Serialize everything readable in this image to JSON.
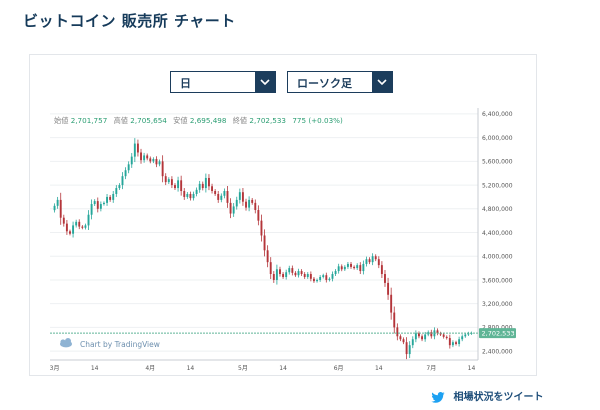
{
  "page_title": "ビットコイン 販売所 チャート",
  "controls": {
    "period_value": "日",
    "chart_type_value": "ローソク足"
  },
  "ohlc_header": {
    "open_label": "始値",
    "open_value": "2,701,757",
    "high_label": "高値",
    "high_value": "2,705,654",
    "low_label": "安値",
    "low_value": "2,695,498",
    "close_label": "終値",
    "close_value": "2,702,533",
    "change_value": "775 (+0.03%)"
  },
  "attribution": "Chart by TradingView",
  "tweet_link": "相場状況をツイート",
  "colors": {
    "up": "#26a69a",
    "down": "#b4353a",
    "navy": "#1c3d5c",
    "price_line": "#5fb596"
  },
  "chart_data": {
    "type": "candlestick",
    "yticks": [
      "6,400,000",
      "6,000,000",
      "5,600,000",
      "5,200,000",
      "4,800,000",
      "4,400,000",
      "4,000,000",
      "3,600,000",
      "3,200,000",
      "2,800,000",
      "2,400,000"
    ],
    "ytick_values": [
      6400000,
      6000000,
      5600000,
      5200000,
      4800000,
      4400000,
      4000000,
      3600000,
      3200000,
      2800000,
      2400000
    ],
    "ylim": [
      2250000,
      6500000
    ],
    "xtick_labels": [
      {
        "label": "3月",
        "index": 0
      },
      {
        "label": "14",
        "index": 13
      },
      {
        "label": "4月",
        "index": 31
      },
      {
        "label": "14",
        "index": 44
      },
      {
        "label": "5月",
        "index": 61
      },
      {
        "label": "14",
        "index": 74
      },
      {
        "label": "6月",
        "index": 92
      },
      {
        "label": "14",
        "index": 105
      },
      {
        "label": "7月",
        "index": 122
      },
      {
        "label": "14",
        "index": 135
      }
    ],
    "last_price": 2702533,
    "last_price_label": "2,702,533",
    "close_series": [
      4850000,
      4950000,
      4650000,
      4550000,
      4420000,
      4380000,
      4520000,
      4580000,
      4500000,
      4480000,
      4520000,
      4700000,
      4880000,
      4930000,
      4800000,
      4880000,
      4900000,
      5000000,
      4950000,
      5050000,
      5150000,
      5200000,
      5350000,
      5450000,
      5550000,
      5680000,
      5900000,
      5750000,
      5620000,
      5700000,
      5650000,
      5600000,
      5640000,
      5550000,
      5600000,
      5350000,
      5250000,
      5300000,
      5200000,
      5150000,
      5280000,
      5100000,
      5000000,
      5050000,
      4980000,
      5050000,
      5120000,
      5220000,
      5150000,
      5320000,
      5180000,
      5100000,
      5050000,
      4950000,
      5020000,
      5100000,
      4900000,
      4720000,
      4840000,
      4950000,
      5080000,
      4920000,
      4820000,
      4950000,
      4900000,
      4780000,
      4600000,
      4350000,
      4100000,
      3900000,
      3700000,
      3600000,
      3780000,
      3700000,
      3650000,
      3730000,
      3800000,
      3720000,
      3680000,
      3750000,
      3700000,
      3650000,
      3700000,
      3620000,
      3580000,
      3600000,
      3650000,
      3680000,
      3600000,
      3620000,
      3700000,
      3750000,
      3830000,
      3780000,
      3820000,
      3870000,
      3820000,
      3800000,
      3850000,
      3750000,
      3870000,
      3950000,
      3900000,
      4000000,
      3950000,
      3850000,
      3700000,
      3550000,
      3350000,
      3050000,
      2800000,
      2650000,
      2600000,
      2550000,
      2350000,
      2500000,
      2600000,
      2700000,
      2650000,
      2600000,
      2680000,
      2720000,
      2650000,
      2750000,
      2700000,
      2680000,
      2640000,
      2620000,
      2500000,
      2550000,
      2520000,
      2600000,
      2650000,
      2680000,
      2700000,
      2702533
    ]
  }
}
